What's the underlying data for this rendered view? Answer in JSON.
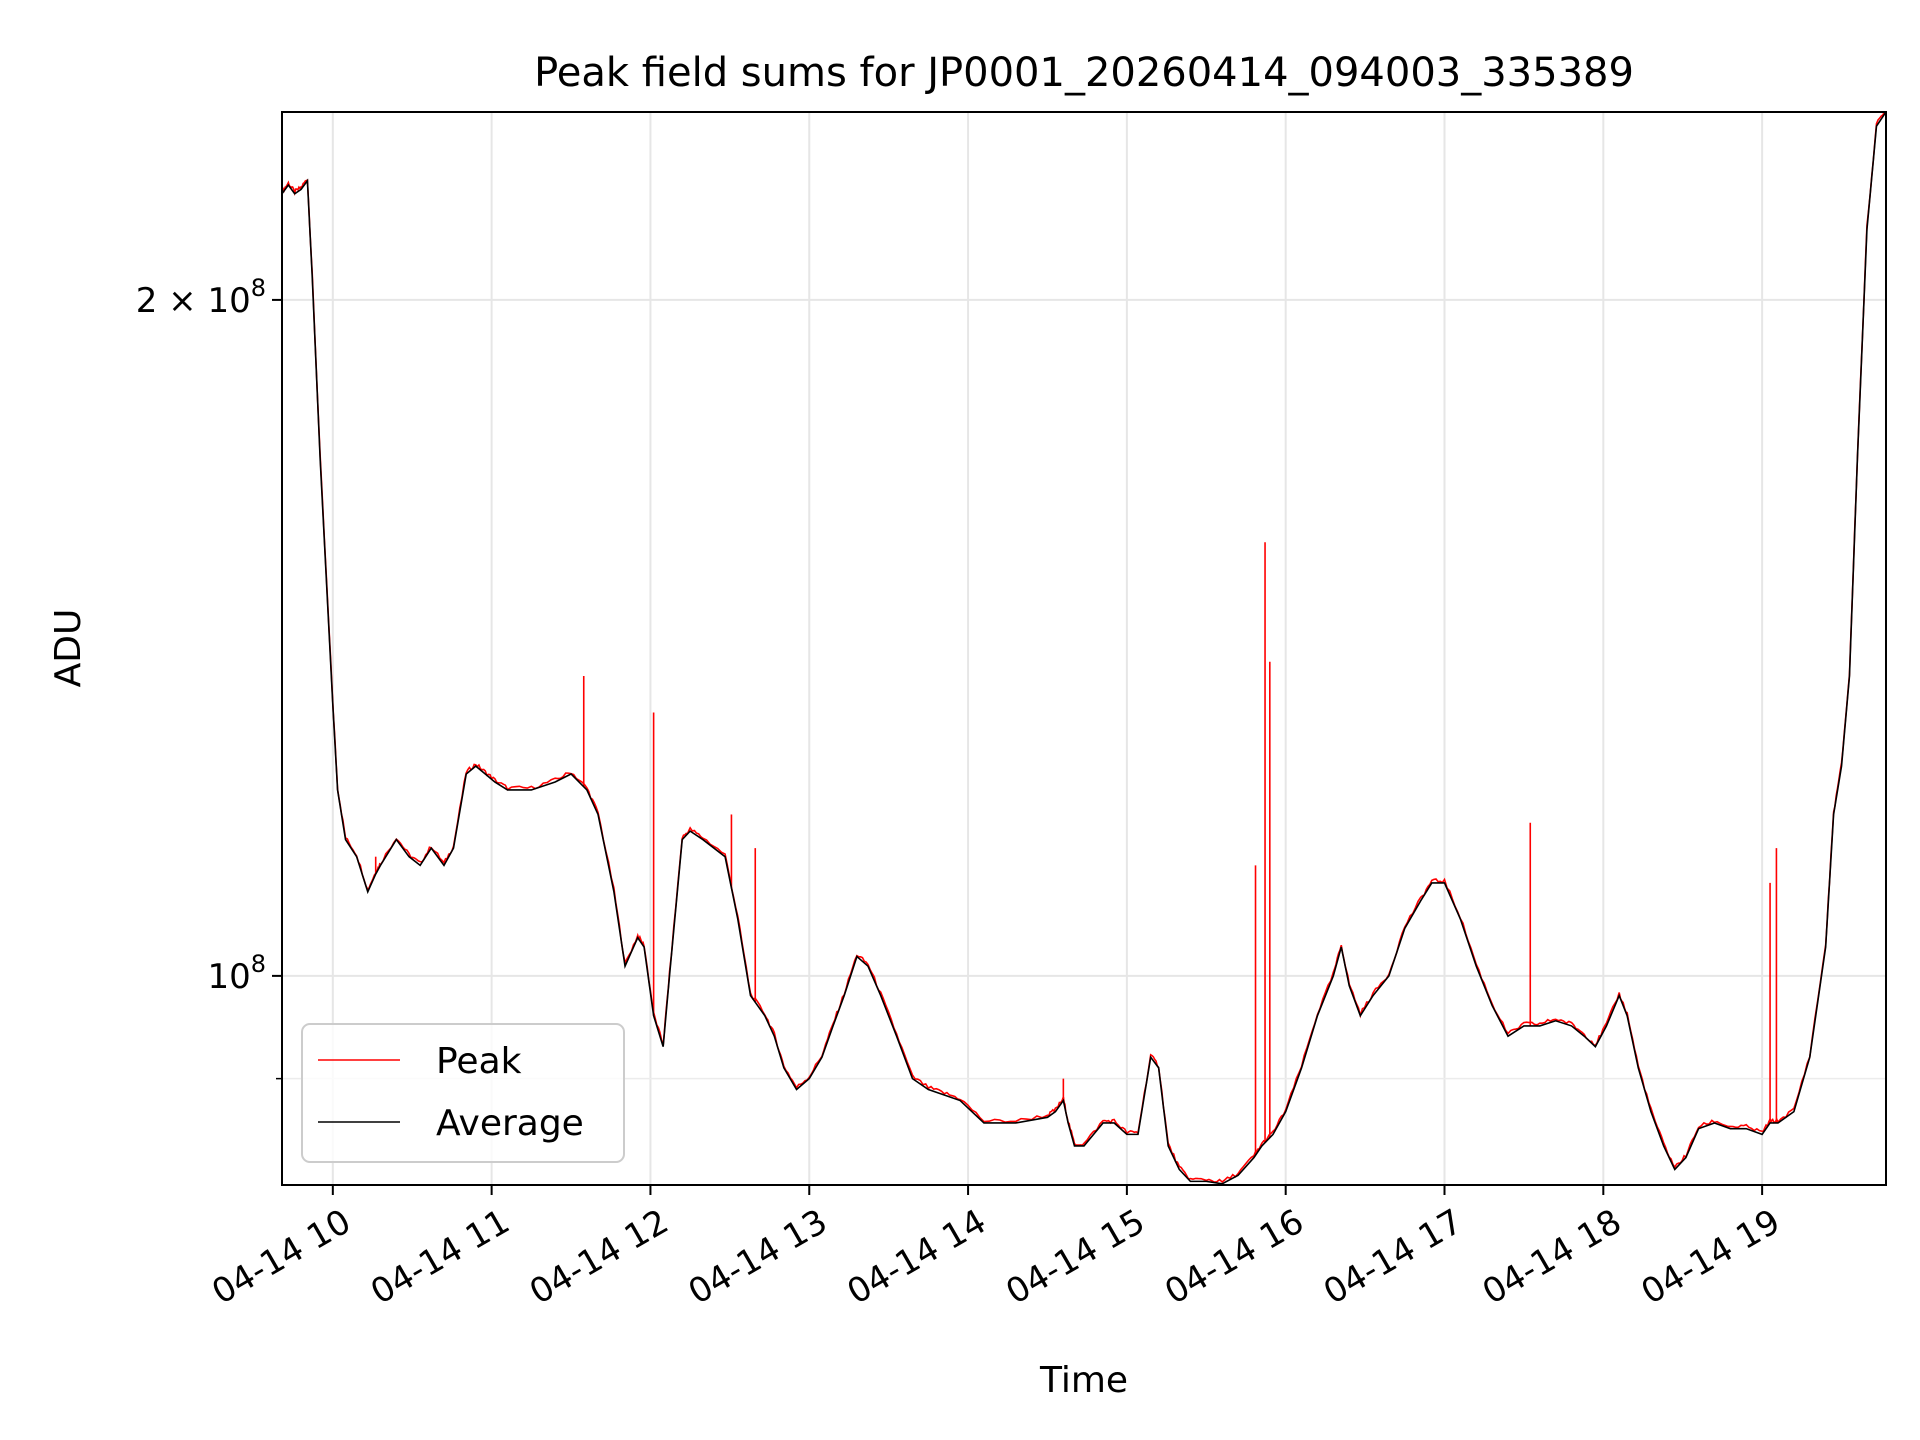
{
  "chart_data": {
    "type": "line",
    "title": "Peak field sums for JP0001_20260414_094003_335389",
    "xlabel": "Time",
    "ylabel": "ADU",
    "x_unit": "hours since 2026-04-14 00:00",
    "xlim": [
      9.68,
      19.78
    ],
    "ylim": [
      80700000,
      242500000
    ],
    "y_scale": "log",
    "grid": true,
    "legend_position": "lower-left",
    "x_ticks": [
      {
        "value": 10,
        "label": "04-14 10"
      },
      {
        "value": 11,
        "label": "04-14 11"
      },
      {
        "value": 12,
        "label": "04-14 12"
      },
      {
        "value": 13,
        "label": "04-14 13"
      },
      {
        "value": 14,
        "label": "04-14 14"
      },
      {
        "value": 15,
        "label": "04-14 15"
      },
      {
        "value": 16,
        "label": "04-14 16"
      },
      {
        "value": 17,
        "label": "04-14 17"
      },
      {
        "value": 18,
        "label": "04-14 18"
      },
      {
        "value": 19,
        "label": "04-14 19"
      }
    ],
    "y_major_ticks": [
      {
        "value": 100000000,
        "base": "10",
        "exp": "8",
        "coef": ""
      },
      {
        "value": 200000000,
        "base": "10",
        "exp": "8",
        "coef": "2 × "
      }
    ],
    "y_minor_ticks": [
      90000000
    ],
    "series": [
      {
        "name": "Average",
        "color": "#000000",
        "x": [
          9.68,
          9.72,
          9.76,
          9.8,
          9.84,
          9.87,
          9.92,
          10.0,
          10.03,
          10.08,
          10.15,
          10.22,
          10.27,
          10.3,
          10.4,
          10.48,
          10.55,
          10.62,
          10.7,
          10.76,
          10.84,
          10.9,
          10.96,
          11.02,
          11.1,
          11.25,
          11.4,
          11.5,
          11.6,
          11.67,
          11.77,
          11.84,
          11.92,
          11.96,
          12.02,
          12.08,
          12.12,
          12.2,
          12.25,
          12.33,
          12.47,
          12.55,
          12.63,
          12.72,
          12.78,
          12.84,
          12.92,
          13.0,
          13.08,
          13.15,
          13.22,
          13.3,
          13.37,
          13.45,
          13.55,
          13.65,
          13.75,
          13.85,
          13.95,
          14.1,
          14.3,
          14.5,
          14.55,
          14.6,
          14.63,
          14.67,
          14.73,
          14.85,
          14.92,
          15.0,
          15.07,
          15.15,
          15.2,
          15.26,
          15.33,
          15.4,
          15.5,
          15.6,
          15.7,
          15.8,
          15.85,
          15.92,
          16.0,
          16.1,
          16.2,
          16.3,
          16.35,
          16.4,
          16.47,
          16.55,
          16.65,
          16.75,
          16.85,
          16.92,
          17.0,
          17.1,
          17.2,
          17.3,
          17.4,
          17.5,
          17.6,
          17.7,
          17.8,
          17.88,
          17.95,
          18.02,
          18.1,
          18.15,
          18.22,
          18.3,
          18.38,
          18.45,
          18.52,
          18.6,
          18.7,
          18.8,
          18.9,
          19.0,
          19.05,
          19.1,
          19.2,
          19.3,
          19.4,
          19.45,
          19.5,
          19.55,
          19.6,
          19.66,
          19.72,
          19.78
        ],
        "values": [
          223000000,
          225000000,
          223000000,
          224000000,
          226000000,
          205000000,
          170000000,
          132000000,
          121000000,
          115000000,
          113000000,
          109000000,
          111000000,
          112000000,
          115000000,
          113000000,
          112000000,
          114000000,
          112000000,
          114000000,
          123000000,
          124000000,
          123000000,
          122000000,
          121000000,
          121000000,
          122000000,
          123000000,
          121000000,
          118000000,
          109000000,
          101000000,
          104000000,
          103000000,
          96000000,
          93000000,
          100000000,
          115000000,
          116000000,
          115000000,
          113000000,
          106000000,
          98000000,
          96000000,
          94000000,
          91000000,
          89000000,
          90000000,
          92000000,
          95000000,
          98000000,
          102000000,
          101000000,
          98000000,
          94000000,
          90000000,
          89000000,
          88500000,
          88000000,
          86000000,
          86000000,
          86500000,
          87000000,
          88000000,
          86000000,
          84000000,
          84000000,
          86000000,
          86000000,
          85000000,
          85000000,
          92000000,
          91000000,
          84000000,
          82000000,
          81000000,
          81000000,
          80800000,
          81500000,
          83000000,
          84000000,
          85000000,
          87000000,
          91000000,
          96000000,
          100000000,
          103000000,
          99000000,
          96000000,
          98000000,
          100000000,
          105000000,
          108000000,
          110000000,
          110000000,
          106000000,
          101000000,
          97000000,
          94000000,
          95000000,
          95000000,
          95500000,
          95000000,
          94000000,
          93000000,
          95000000,
          98000000,
          96000000,
          91000000,
          87000000,
          84000000,
          82000000,
          83000000,
          85500000,
          86000000,
          85500000,
          85500000,
          85000000,
          86000000,
          86000000,
          87000000,
          92000000,
          103000000,
          118000000,
          124000000,
          136000000,
          170000000,
          215000000,
          239000000,
          242500000
        ]
      },
      {
        "name": "Peak",
        "color": "#ff0000",
        "spikes": [
          {
            "x": 10.27,
            "value": 113000000
          },
          {
            "x": 11.58,
            "value": 136000000
          },
          {
            "x": 12.02,
            "value": 131000000
          },
          {
            "x": 12.51,
            "value": 118000000
          },
          {
            "x": 12.66,
            "value": 114000000
          },
          {
            "x": 14.6,
            "value": 90000000
          },
          {
            "x": 15.81,
            "value": 112000000
          },
          {
            "x": 15.87,
            "value": 156000000
          },
          {
            "x": 15.9,
            "value": 138000000
          },
          {
            "x": 17.54,
            "value": 117000000
          },
          {
            "x": 19.05,
            "value": 110000000
          },
          {
            "x": 19.09,
            "value": 114000000
          }
        ]
      }
    ]
  }
}
